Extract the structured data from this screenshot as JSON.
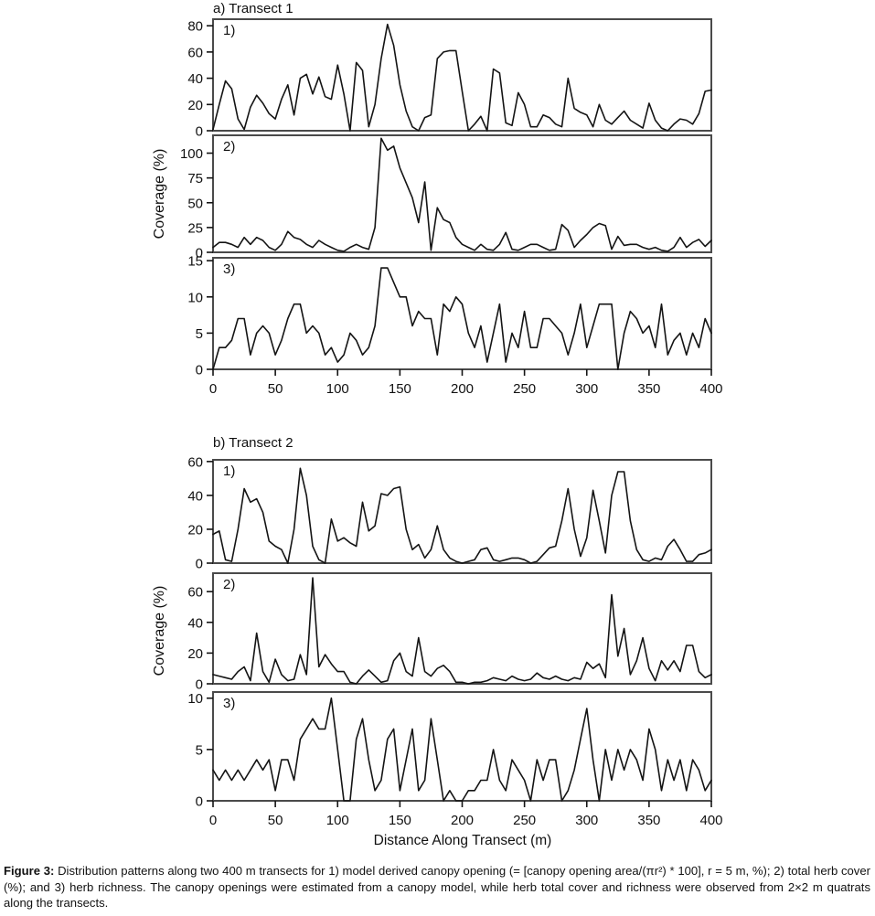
{
  "figure": {
    "caption_label": "Figure 3:",
    "caption_text": "Distribution patterns along two 400 m transects for 1) model derived canopy opening (= [canopy opening area/(πr²) * 100], r = 5 m, %); 2) total herb cover (%); and 3) herb richness.  The canopy openings were estimated from a canopy model, while herb total cover and richness were observed from 2×2 m quatrats along the transects."
  },
  "chart_data": [
    {
      "type": "line",
      "title": "a) Transect 1",
      "ylabel": "Coverage (%)",
      "xlabel": "",
      "xlim": [
        0,
        400
      ],
      "x_step": 5,
      "x_ticks": [
        0,
        50,
        100,
        150,
        200,
        250,
        300,
        350,
        400
      ],
      "grid": false,
      "legend": "none",
      "subplots": [
        {
          "label": "1)",
          "description": "model derived canopy opening (%)",
          "yticks": [
            0,
            20,
            40,
            60,
            80
          ],
          "ylim": [
            0,
            85
          ],
          "values": [
            1,
            20,
            38,
            32,
            9,
            1,
            18,
            27,
            21,
            13,
            9,
            24,
            35,
            12,
            40,
            43,
            28,
            41,
            26,
            24,
            50,
            28,
            0,
            52,
            46,
            3,
            20,
            55,
            81,
            65,
            35,
            15,
            3,
            0,
            10,
            12,
            55,
            60,
            61,
            61,
            30,
            0,
            5,
            11,
            0,
            47,
            44,
            6,
            4,
            29,
            20,
            3,
            3,
            12,
            10,
            5,
            3,
            40,
            17,
            14,
            12,
            3,
            20,
            8,
            5,
            10,
            15,
            8,
            5,
            2,
            21,
            8,
            2,
            0,
            5,
            9,
            8,
            5,
            13,
            30,
            31
          ]
        },
        {
          "label": "2)",
          "description": "total herb cover (%)",
          "yticks": [
            0,
            25,
            50,
            75,
            100
          ],
          "ylim": [
            0,
            118
          ],
          "values": [
            5,
            10,
            10,
            8,
            5,
            15,
            8,
            15,
            12,
            5,
            2,
            8,
            21,
            15,
            13,
            8,
            5,
            12,
            8,
            5,
            2,
            1,
            5,
            8,
            5,
            3,
            25,
            115,
            103,
            107,
            85,
            70,
            55,
            30,
            71,
            2,
            45,
            33,
            30,
            15,
            8,
            5,
            2,
            8,
            3,
            2,
            8,
            20,
            3,
            2,
            5,
            8,
            8,
            5,
            2,
            3,
            28,
            22,
            5,
            12,
            18,
            25,
            29,
            27,
            3,
            16,
            7,
            8,
            8,
            5,
            3,
            5,
            2,
            1,
            5,
            15,
            5,
            10,
            13,
            6,
            12
          ]
        },
        {
          "label": "3)",
          "description": "herb richness",
          "yticks": [
            0,
            5,
            10,
            15
          ],
          "ylim": [
            0,
            15.4
          ],
          "values": [
            0,
            3,
            3,
            4,
            7,
            7,
            2,
            5,
            6,
            5,
            2,
            4,
            7,
            9,
            9,
            5,
            6,
            5,
            2,
            3,
            1,
            2,
            5,
            4,
            2,
            3,
            6,
            14,
            14,
            12,
            10,
            10,
            6,
            8,
            7,
            7,
            2,
            9,
            8,
            10,
            9,
            5,
            3,
            6,
            1,
            5,
            9,
            1,
            5,
            3,
            8,
            3,
            3,
            7,
            7,
            6,
            5,
            2,
            5,
            9,
            3,
            6,
            9,
            9,
            9,
            0,
            5,
            8,
            7,
            5,
            6,
            3,
            9,
            2,
            4,
            5,
            2,
            5,
            3,
            7,
            5
          ]
        }
      ]
    },
    {
      "type": "line",
      "title": "b) Transect 2",
      "ylabel": "Coverage (%)",
      "xlabel": "Distance Along Transect (m)",
      "xlim": [
        0,
        400
      ],
      "x_step": 5,
      "x_ticks": [
        0,
        50,
        100,
        150,
        200,
        250,
        300,
        350,
        400
      ],
      "grid": false,
      "legend": "none",
      "subplots": [
        {
          "label": "1)",
          "description": "model derived canopy opening (%)",
          "yticks": [
            0,
            20,
            40,
            60
          ],
          "ylim": [
            0,
            61
          ],
          "values": [
            17,
            19,
            2,
            1,
            20,
            44,
            36,
            38,
            30,
            13,
            10,
            8,
            0,
            20,
            56,
            40,
            10,
            2,
            0,
            26,
            13,
            15,
            12,
            10,
            36,
            19,
            22,
            41,
            40,
            44,
            45,
            20,
            8,
            11,
            3,
            8,
            22,
            8,
            3,
            1,
            0,
            1,
            2,
            8,
            9,
            2,
            1,
            2,
            3,
            3,
            2,
            0,
            1,
            5,
            9,
            10,
            25,
            44,
            20,
            4,
            15,
            43,
            25,
            6,
            40,
            54,
            54,
            25,
            8,
            2,
            1,
            3,
            2,
            10,
            14,
            8,
            1,
            1,
            5,
            6,
            8
          ]
        },
        {
          "label": "2)",
          "description": "total herb cover (%)",
          "yticks": [
            0,
            20,
            40,
            60
          ],
          "ylim": [
            0,
            72
          ],
          "values": [
            6,
            5,
            4,
            3,
            8,
            11,
            2,
            33,
            8,
            1,
            16,
            6,
            2,
            3,
            19,
            6,
            69,
            11,
            19,
            13,
            8,
            8,
            1,
            0,
            5,
            9,
            5,
            1,
            2,
            15,
            20,
            8,
            5,
            30,
            8,
            5,
            10,
            12,
            8,
            1,
            1,
            0,
            1,
            1,
            2,
            4,
            3,
            2,
            5,
            3,
            2,
            3,
            7,
            4,
            3,
            5,
            3,
            2,
            4,
            3,
            14,
            10,
            13,
            4,
            58,
            18,
            36,
            6,
            15,
            30,
            10,
            2,
            15,
            9,
            15,
            8,
            25,
            25,
            8,
            4,
            6
          ]
        },
        {
          "label": "3)",
          "description": "herb richness",
          "yticks": [
            0,
            5,
            10
          ],
          "ylim": [
            0,
            10.6
          ],
          "values": [
            3,
            2,
            3,
            2,
            3,
            2,
            3,
            4,
            3,
            4,
            1,
            4,
            4,
            2,
            6,
            7,
            8,
            7,
            7,
            10,
            5,
            0,
            0,
            6,
            8,
            4,
            1,
            2,
            6,
            7,
            1,
            4,
            7,
            1,
            2,
            8,
            4,
            0,
            1,
            0,
            0,
            1,
            1,
            2,
            2,
            5,
            2,
            1,
            4,
            3,
            2,
            0,
            4,
            2,
            4,
            4,
            0,
            1,
            3,
            6,
            9,
            4,
            0,
            5,
            2,
            5,
            3,
            5,
            4,
            2,
            7,
            5,
            1,
            4,
            2,
            4,
            1,
            4,
            3,
            1,
            2
          ]
        }
      ]
    }
  ]
}
